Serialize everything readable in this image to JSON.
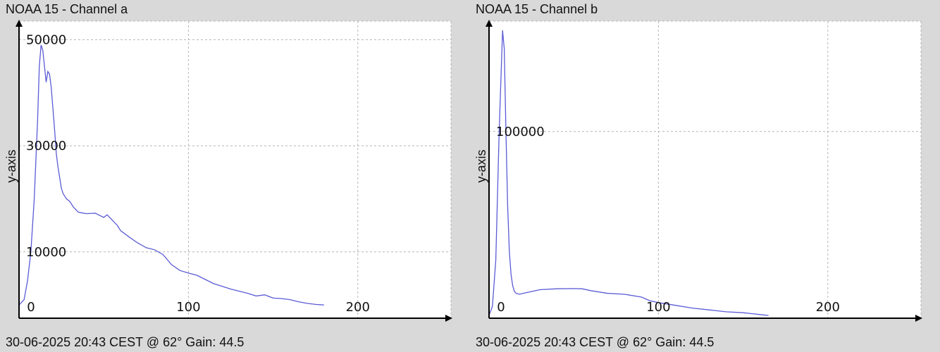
{
  "panels": [
    {
      "title": "NOAA 15 - Channel a",
      "footer": "30-06-2025 20:43 CEST @ 62° Gain: 44.5"
    },
    {
      "title": "NOAA 15 - Channel b",
      "footer": "30-06-2025 20:43 CEST @ 62° Gain: 44.5"
    }
  ],
  "chart_data": [
    {
      "type": "line",
      "title": "NOAA 15 - Channel a",
      "xlabel": "",
      "ylabel": "y-axis",
      "xlim": [
        0,
        255
      ],
      "ylim": [
        -2500,
        53500
      ],
      "x_ticks": [
        0,
        100,
        200
      ],
      "y_ticks": [
        10000,
        30000,
        50000
      ],
      "grid": true,
      "line_color": "#5b5bd6",
      "series": [
        {
          "x": [
            0,
            3,
            5,
            7,
            9,
            11,
            12,
            13,
            14,
            15,
            16,
            17,
            18,
            19,
            20,
            21,
            22,
            23,
            24,
            25,
            26,
            27,
            28,
            30,
            32,
            35,
            38,
            40,
            45,
            50,
            52,
            55,
            58,
            60,
            65,
            70,
            75,
            80,
            85,
            90,
            95,
            100,
            105,
            110,
            115,
            120,
            125,
            130,
            135,
            140,
            145,
            150,
            155,
            160,
            165,
            170,
            175,
            180
          ],
          "y": [
            0,
            1000,
            4500,
            10000,
            20000,
            35000,
            45000,
            49000,
            48000,
            45000,
            42000,
            44000,
            43500,
            41000,
            37000,
            33000,
            28500,
            26000,
            24000,
            22000,
            21000,
            20500,
            20000,
            19500,
            18500,
            17500,
            17300,
            17200,
            17300,
            16500,
            17000,
            16000,
            15000,
            14000,
            12800,
            11700,
            10800,
            10400,
            9500,
            7600,
            6500,
            6000,
            5600,
            4800,
            4000,
            3500,
            3000,
            2600,
            2200,
            1700,
            1900,
            1300,
            1200,
            1000,
            600,
            300,
            100,
            0
          ]
        }
      ]
    },
    {
      "type": "line",
      "title": "NOAA 15 - Channel b",
      "xlabel": "",
      "ylabel": "y-axis",
      "xlim": [
        0,
        255
      ],
      "ylim": [
        -1500,
        160000
      ],
      "x_ticks": [
        0,
        100,
        200
      ],
      "y_ticks": [
        100000
      ],
      "grid": true,
      "line_color": "#5b5bd6",
      "series": [
        {
          "x": [
            0,
            2,
            4,
            6,
            8,
            9,
            10,
            11,
            12,
            13,
            14,
            15,
            16,
            18,
            20,
            25,
            30,
            40,
            50,
            55,
            60,
            70,
            80,
            90,
            95,
            100,
            110,
            120,
            130,
            140,
            150,
            155,
            160,
            165
          ],
          "y": [
            0,
            5000,
            30000,
            100000,
            155000,
            145000,
            100000,
            60000,
            35000,
            22000,
            16000,
            13000,
            12000,
            11500,
            12000,
            13000,
            14000,
            14500,
            14600,
            14500,
            13500,
            12000,
            11500,
            10000,
            8000,
            7000,
            5500,
            4000,
            3000,
            2000,
            1500,
            1000,
            500,
            0
          ]
        }
      ]
    }
  ]
}
